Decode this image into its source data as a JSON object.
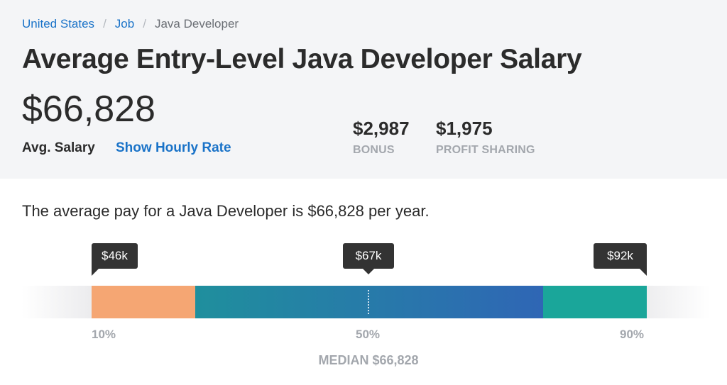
{
  "breadcrumb": {
    "items": [
      {
        "label": "United States"
      },
      {
        "label": "Job"
      }
    ],
    "separator": "/",
    "current": "Java Developer"
  },
  "header": {
    "title": "Average Entry-Level Java Developer Salary",
    "avg_salary": "$66,828",
    "avg_label": "Avg. Salary",
    "hourly_link": "Show Hourly Rate",
    "stats": [
      {
        "value": "$2,987",
        "label": "BONUS"
      },
      {
        "value": "$1,975",
        "label": "PROFIT SHARING"
      }
    ]
  },
  "summary": "The average pay for a Java Developer is $66,828 per year.",
  "range": {
    "tooltips": {
      "low": "$46k",
      "median": "$67k",
      "high": "$92k"
    },
    "percentiles": {
      "p10": "10%",
      "p50": "50%",
      "p90": "90%"
    },
    "median_label": "MEDIAN $66,828"
  },
  "colors": {
    "accent_link": "#1a73c8",
    "low_segment": "#f5a673",
    "mid_segment_start": "#1f8f9d",
    "mid_segment_end": "#2f66b5",
    "high_segment": "#1aa69a"
  }
}
